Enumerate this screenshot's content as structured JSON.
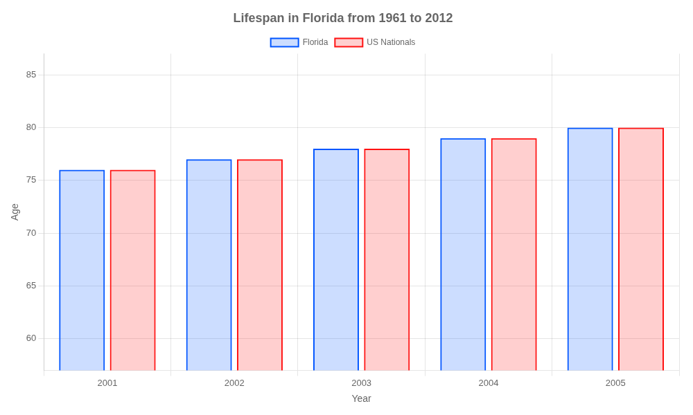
{
  "chart_data": {
    "type": "bar",
    "title": "Lifespan in Florida from 1961 to 2012",
    "xlabel": "Year",
    "ylabel": "Age",
    "categories": [
      "2001",
      "2002",
      "2003",
      "2004",
      "2005"
    ],
    "series": [
      {
        "name": "Florida",
        "color": "#0055ff",
        "values": [
          76,
          77,
          78,
          79,
          80
        ]
      },
      {
        "name": "US Nationals",
        "color": "#ff1111",
        "values": [
          76,
          77,
          78,
          79,
          80
        ]
      }
    ],
    "ylim": [
      57,
      87
    ],
    "yticks": [
      60,
      65,
      70,
      75,
      80,
      85
    ],
    "grid": true,
    "legend": "top"
  }
}
